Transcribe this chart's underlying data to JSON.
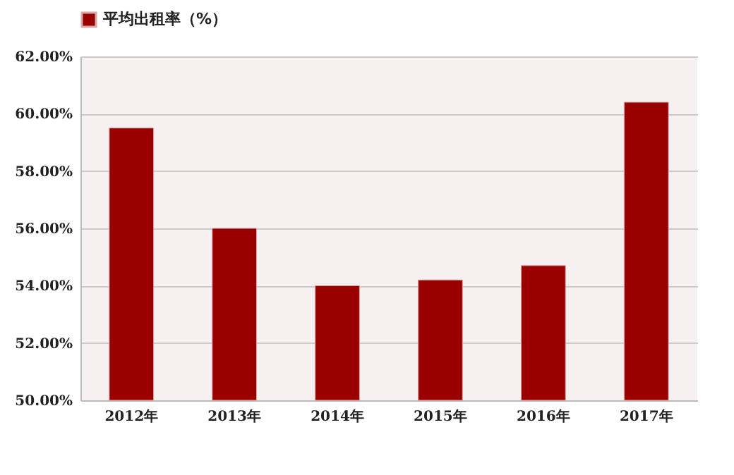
{
  "chart_data": {
    "type": "bar",
    "categories": [
      "2012年",
      "2013年",
      "2014年",
      "2015年",
      "2016年",
      "2017年"
    ],
    "series": [
      {
        "name": "平均出租率（%）",
        "color": "#990000",
        "values": [
          59.5,
          56.0,
          54.0,
          54.2,
          54.7,
          60.4
        ]
      }
    ],
    "ylim": [
      50,
      62
    ],
    "yticks": [
      {
        "value": 50,
        "label": "50.00%"
      },
      {
        "value": 52,
        "label": "52.00%"
      },
      {
        "value": 54,
        "label": "54.00%"
      },
      {
        "value": 56,
        "label": "56.00%"
      },
      {
        "value": 58,
        "label": "58.00%"
      },
      {
        "value": 60,
        "label": "60.00%"
      },
      {
        "value": 62,
        "label": "62.00%"
      }
    ],
    "grid": "y",
    "legend": "top"
  }
}
